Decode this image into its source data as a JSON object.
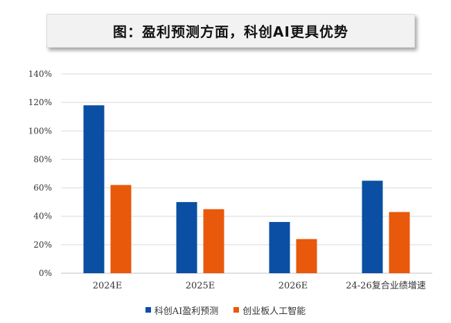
{
  "chart_data": {
    "type": "bar",
    "title": "图：盈利预测方面，科创AI更具优势",
    "categories": [
      "2024E",
      "2025E",
      "2026E",
      "24-26复合业绩增速"
    ],
    "series": [
      {
        "name": "科创AI盈利预测",
        "color": "#0a4fa3",
        "values": [
          118,
          50,
          36,
          65
        ]
      },
      {
        "name": "创业板人工智能",
        "color": "#e8590c",
        "values": [
          62,
          45,
          24,
          43
        ]
      }
    ],
    "ylim": [
      0,
      140
    ],
    "yticks": [
      "0%",
      "20%",
      "40%",
      "60%",
      "80%",
      "100%",
      "120%",
      "140%"
    ],
    "grid": true,
    "legend_position": "bottom"
  }
}
